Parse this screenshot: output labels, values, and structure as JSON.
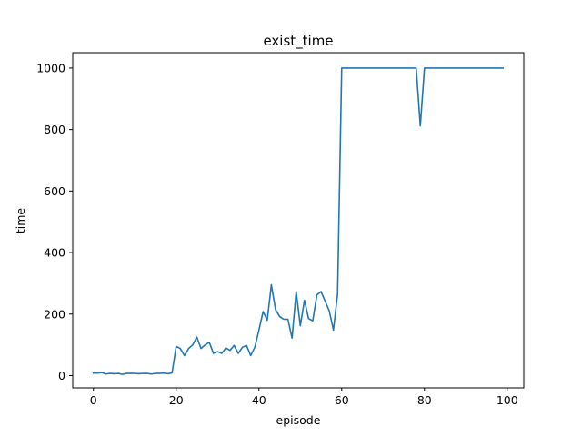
{
  "chart_data": {
    "type": "line",
    "title": "exist_time",
    "xlabel": "episode",
    "ylabel": "time",
    "xlim": [
      -5,
      104
    ],
    "ylim": [
      -40,
      1050
    ],
    "xticks": [
      0,
      20,
      40,
      60,
      80,
      100
    ],
    "yticks": [
      0,
      200,
      400,
      600,
      800,
      1000
    ],
    "grid": false,
    "series": [
      {
        "color": "#1f77b4",
        "x": [
          0,
          1,
          2,
          3,
          4,
          5,
          6,
          7,
          8,
          9,
          10,
          11,
          12,
          13,
          14,
          15,
          16,
          17,
          18,
          19,
          20,
          21,
          22,
          23,
          24,
          25,
          26,
          27,
          28,
          29,
          30,
          31,
          32,
          33,
          34,
          35,
          36,
          37,
          38,
          39,
          40,
          41,
          42,
          43,
          44,
          45,
          46,
          47,
          48,
          49,
          50,
          51,
          52,
          53,
          54,
          55,
          56,
          57,
          58,
          59,
          60,
          61,
          62,
          63,
          64,
          65,
          66,
          67,
          68,
          69,
          70,
          71,
          72,
          73,
          74,
          75,
          76,
          77,
          78,
          79,
          80,
          81,
          82,
          83,
          84,
          85,
          86,
          87,
          88,
          89,
          90,
          91,
          92,
          93,
          94,
          95,
          96,
          97,
          98,
          99
        ],
        "y": [
          8,
          8,
          10,
          5,
          7,
          6,
          7,
          4,
          7,
          7,
          7,
          6,
          7,
          7,
          5,
          7,
          7,
          8,
          6,
          9,
          95,
          88,
          65,
          88,
          100,
          125,
          88,
          100,
          108,
          72,
          78,
          72,
          90,
          82,
          98,
          72,
          92,
          98,
          65,
          92,
          148,
          208,
          180,
          295,
          215,
          192,
          183,
          183,
          122,
          273,
          162,
          245,
          185,
          178,
          262,
          273,
          242,
          210,
          148,
          265,
          1000,
          1000,
          1000,
          1000,
          1000,
          1000,
          1000,
          1000,
          1000,
          1000,
          1000,
          1000,
          1000,
          1000,
          1000,
          1000,
          1000,
          1000,
          1000,
          812,
          1000,
          1000,
          1000,
          1000,
          1000,
          1000,
          1000,
          1000,
          1000,
          1000,
          1000,
          1000,
          1000,
          1000,
          1000,
          1000,
          1000,
          1000,
          1000,
          1000
        ]
      }
    ]
  }
}
